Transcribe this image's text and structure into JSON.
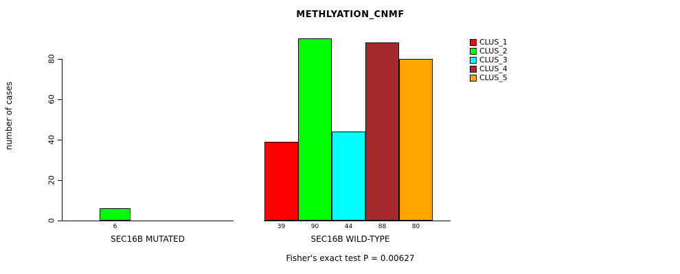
{
  "title": "METHLYATION_CNMF",
  "y_axis": {
    "label": "number of cases",
    "ticks": [
      "0",
      "20",
      "40",
      "60",
      "80"
    ]
  },
  "footer": "Fisher's exact test P = 0.00627",
  "legend": {
    "items": [
      {
        "label": "CLUS_1",
        "color": "#FF0000"
      },
      {
        "label": "CLUS_2",
        "color": "#00FF00"
      },
      {
        "label": "CLUS_3",
        "color": "#00FFFF"
      },
      {
        "label": "CLUS_4",
        "color": "#A52A2A"
      },
      {
        "label": "CLUS_5",
        "color": "#FFA500"
      }
    ]
  },
  "chart_data": {
    "type": "bar",
    "title": "METHLYATION_CNMF",
    "ylabel": "number of cases",
    "ylim": [
      0,
      90
    ],
    "yticks": [
      0,
      20,
      40,
      60,
      80
    ],
    "grid": false,
    "legend_position": "top-right",
    "legend_entries": [
      "CLUS_1",
      "CLUS_2",
      "CLUS_3",
      "CLUS_4",
      "CLUS_5"
    ],
    "groups": [
      {
        "label": "SEC16B MUTATED",
        "bars": [
          {
            "series": "CLUS_2",
            "value": 6,
            "color": "#00FF00"
          }
        ]
      },
      {
        "label": "SEC16B WILD-TYPE",
        "bars": [
          {
            "series": "CLUS_1",
            "value": 39,
            "color": "#FF0000"
          },
          {
            "series": "CLUS_2",
            "value": 90,
            "color": "#00FF00"
          },
          {
            "series": "CLUS_3",
            "value": 44,
            "color": "#00FFFF"
          },
          {
            "series": "CLUS_4",
            "value": 88,
            "color": "#A52A2A"
          },
          {
            "series": "CLUS_5",
            "value": 80,
            "color": "#FFA500"
          }
        ]
      }
    ],
    "annotation": "Fisher's exact test P = 0.00627"
  }
}
